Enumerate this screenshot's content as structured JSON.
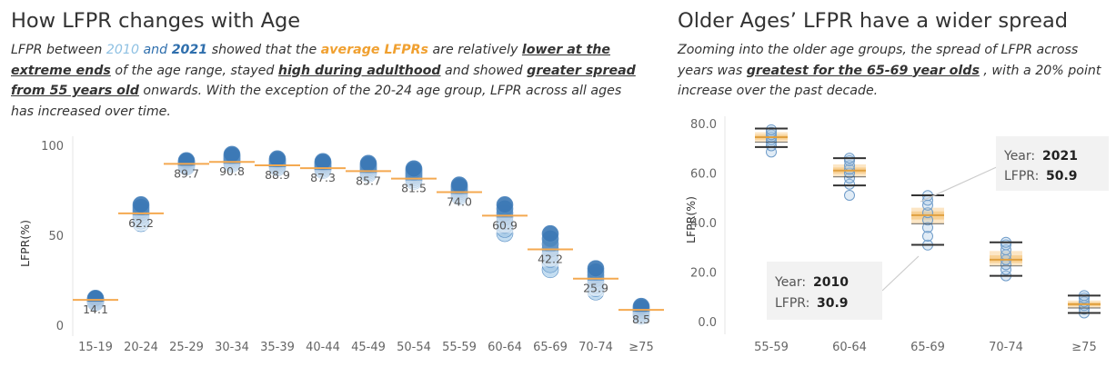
{
  "left": {
    "title": "How LFPR changes with Age",
    "desc": {
      "t1": "LFPR between ",
      "y2010": "2010",
      "and": " and ",
      "y2021": "2021",
      "t2": " showed that the ",
      "avg": "average LFPRs",
      "t3": " are relatively ",
      "h1": "lower at the extreme ends",
      "t4": " of the age range, stayed ",
      "h2": "high during adulthood",
      "t5": " and showed ",
      "h3": "greater spread from 55 years old",
      "t6": " onwards. With the exception of the 20-24 age group, LFPR across all ages has increased over time."
    }
  },
  "right": {
    "title": "Older Ages’ LFPR have a wider spread",
    "desc": {
      "t1": "Zooming into the older age groups, the spread of LFPR  across years was ",
      "h1": "greatest for the 65-69 year olds",
      "t2": " , with a 20% point increase over the past decade."
    },
    "tooltip_2021": {
      "year_key": "Year: ",
      "year_val": "2021",
      "lfpr_key": "LFPR: ",
      "lfpr_val": "50.9"
    },
    "tooltip_2010": {
      "year_key": "Year: ",
      "year_val": "2010",
      "lfpr_key": "LFPR: ",
      "lfpr_val": "30.9"
    }
  },
  "colors": {
    "avg_line": "#f4a950",
    "dot_light": "#bcd9ef",
    "dot_dark": "#3b78b5",
    "box": "#333333",
    "box_fill": "#f5b85a"
  },
  "chart_data": [
    {
      "type": "scatter",
      "ylabel": "LFPR(%)",
      "ylim": [
        0,
        100
      ],
      "yticks": [
        0,
        50,
        100
      ],
      "grid": false,
      "categories": [
        "15-19",
        "20-24",
        "25-29",
        "30-34",
        "35-39",
        "40-44",
        "45-49",
        "50-54",
        "55-59",
        "60-64",
        "65-69",
        "70-74",
        "≥75"
      ],
      "averages": [
        14.1,
        62.2,
        89.7,
        90.8,
        88.9,
        87.3,
        85.7,
        81.5,
        74.0,
        60.9,
        42.2,
        25.9,
        8.5
      ],
      "average_labels": [
        "14.1",
        "62.2",
        "89.7",
        "90.8",
        "88.9",
        "87.3",
        "85.7",
        "81.5",
        "74.0",
        "60.9",
        "42.2",
        "25.9",
        "8.5"
      ],
      "yearly_min": [
        12.5,
        56.5,
        88.0,
        89.5,
        87.5,
        86.0,
        84.0,
        80.0,
        71.5,
        51.0,
        30.9,
        18.5,
        5.0
      ],
      "yearly_max": [
        15.0,
        67.0,
        91.5,
        95.0,
        92.5,
        91.0,
        90.0,
        87.0,
        78.0,
        67.0,
        50.9,
        31.5,
        10.5
      ]
    },
    {
      "type": "box",
      "ylabel": "LFPR(%)",
      "ylim": [
        0,
        80
      ],
      "yticks": [
        "0.0",
        "20.0",
        "40.0",
        "60.0",
        "80.0"
      ],
      "grid": false,
      "categories": [
        "55-59",
        "60-64",
        "65-69",
        "70-74",
        "≥75"
      ],
      "boxes": [
        {
          "min": 70.5,
          "q1": 72.5,
          "median": 74.5,
          "q3": 76.5,
          "max": 78.0
        },
        {
          "min": 55.0,
          "q1": 58.5,
          "median": 61.0,
          "q3": 63.5,
          "max": 66.0
        },
        {
          "min": 31.0,
          "q1": 39.5,
          "median": 43.0,
          "q3": 46.0,
          "max": 51.0
        },
        {
          "min": 18.5,
          "q1": 22.5,
          "median": 25.0,
          "q3": 28.5,
          "max": 32.0
        },
        {
          "min": 3.5,
          "q1": 5.5,
          "median": 7.0,
          "q3": 8.5,
          "max": 10.5
        }
      ],
      "points": [
        [
          68.5,
          71.0,
          72.5,
          73.5,
          74.5,
          75.5,
          76.5,
          77.5
        ],
        [
          51.0,
          55.5,
          58.0,
          60.0,
          61.5,
          63.0,
          65.0,
          66.0
        ],
        [
          30.9,
          34.5,
          38.0,
          41.0,
          44.0,
          47.0,
          49.0,
          50.9
        ],
        [
          18.5,
          21.0,
          23.0,
          25.0,
          27.0,
          29.0,
          31.0,
          32.0
        ],
        [
          3.5,
          5.0,
          6.5,
          8.0,
          9.5,
          10.5
        ]
      ]
    }
  ]
}
